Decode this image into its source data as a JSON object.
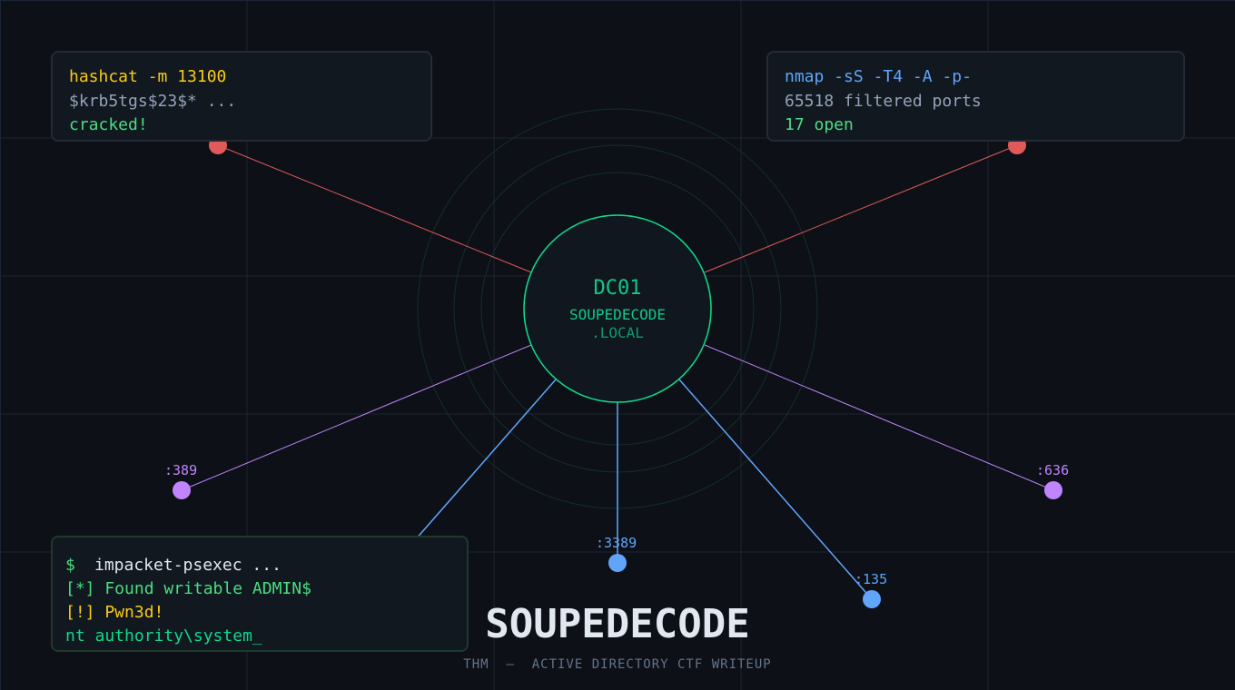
{
  "colors": {
    "background": "#0d1017",
    "grid": "#1c2533",
    "red": "#e05a5a",
    "purple": "#c084fc",
    "blue": "#60a5fa",
    "green": "#10d98a",
    "yellow": "#facc15"
  },
  "center": {
    "name": "DC01",
    "domain": "SOUPEDECODE",
    ".local": ".LOCAL"
  },
  "hashcat_box": {
    "lines": [
      "hashcat -m 13100",
      "$krb5tgs$23$* ...",
      "cracked!"
    ]
  },
  "nmap_box": {
    "lines": [
      "nmap -sS -T4 -A -p-",
      "65518 filtered ports",
      "17 open"
    ]
  },
  "psexec_box": {
    "prompt": "$",
    "command": "impacket-psexec ...",
    "lines": [
      "[*] Found writable ADMIN$",
      "[!] Pwn3d!",
      "nt authority\\system_"
    ]
  },
  "ports": [
    ":389",
    ":636",
    ":3389",
    ":135"
  ],
  "title": "SOUPEDECODE",
  "subtitle": "THM  —  ACTIVE DIRECTORY CTF WRITEUP"
}
